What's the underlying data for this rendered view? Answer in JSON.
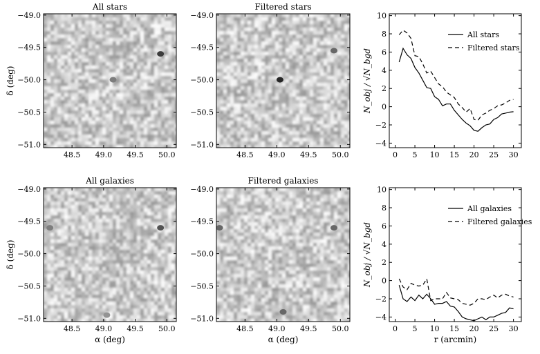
{
  "chart_data": [
    {
      "type": "heatmap",
      "title": "All stars",
      "xlabel": "",
      "ylabel": "δ (deg)",
      "x_ticks": [
        "48.5",
        "49.0",
        "49.5",
        "50.0"
      ],
      "y_ticks": [
        "−49.0",
        "−49.5",
        "−50.0",
        "−50.5",
        "−51.0"
      ],
      "xlim": [
        48.05,
        50.15
      ],
      "ylim": [
        -51.05,
        -48.98
      ],
      "colormap": "grayscale",
      "hotspots": [
        {
          "x": 49.9,
          "y": -49.6,
          "strength": 0.9
        },
        {
          "x": 49.15,
          "y": -50.0,
          "strength": 0.6
        }
      ]
    },
    {
      "type": "heatmap",
      "title": "Filtered stars",
      "xlabel": "",
      "ylabel": "",
      "x_ticks": [
        "48.5",
        "49.0",
        "49.5",
        "50.0"
      ],
      "y_ticks": [
        "−49.0",
        "−49.5",
        "−50.0",
        "−50.5",
        "−51.0"
      ],
      "xlim": [
        48.05,
        50.15
      ],
      "ylim": [
        -51.05,
        -48.98
      ],
      "colormap": "grayscale",
      "hotspots": [
        {
          "x": 49.05,
          "y": -50.0,
          "strength": 1.0
        },
        {
          "x": 49.9,
          "y": -49.55,
          "strength": 0.7
        }
      ]
    },
    {
      "type": "line",
      "xlabel": "",
      "ylabel": "N_obj / √N_bgd",
      "xlim": [
        -1.5,
        32
      ],
      "ylim": [
        -4.5,
        10.2
      ],
      "x_ticks": [
        "0",
        "5",
        "10",
        "15",
        "20",
        "25",
        "30"
      ],
      "y_ticks": [
        "−4",
        "−2",
        "0",
        "2",
        "4",
        "6",
        "8",
        "10"
      ],
      "legend": "top-right",
      "series": [
        {
          "name": "All stars",
          "style": "solid",
          "x": [
            1,
            2,
            3,
            4,
            5,
            6,
            7,
            8,
            9,
            10,
            11,
            12,
            13,
            14,
            15,
            16,
            17,
            18,
            19,
            20,
            21,
            22,
            23,
            24,
            25,
            26,
            27,
            28,
            29,
            30
          ],
          "values": [
            4.9,
            6.4,
            5.7,
            5.3,
            4.3,
            3.7,
            2.9,
            2.1,
            2.0,
            1.1,
            0.8,
            0.1,
            0.3,
            0.3,
            -0.4,
            -0.9,
            -1.4,
            -1.8,
            -2.1,
            -2.6,
            -2.7,
            -2.3,
            -2.0,
            -1.9,
            -1.4,
            -1.2,
            -0.8,
            -0.7,
            -0.6,
            -0.55
          ]
        },
        {
          "name": "Filtered stars",
          "style": "dashed",
          "x": [
            1,
            2,
            3,
            4,
            5,
            6,
            7,
            8,
            9,
            10,
            11,
            12,
            13,
            14,
            15,
            16,
            17,
            18,
            19,
            20,
            21,
            22,
            23,
            24,
            25,
            26,
            27,
            28,
            29,
            30
          ],
          "values": [
            7.9,
            8.4,
            8.1,
            7.5,
            5.6,
            5.5,
            4.7,
            3.7,
            3.9,
            3.2,
            2.5,
            2.2,
            1.6,
            1.3,
            1.0,
            0.3,
            -0.1,
            -0.6,
            -0.2,
            -1.4,
            -1.5,
            -0.9,
            -0.7,
            -0.4,
            -0.2,
            0.1,
            0.2,
            0.4,
            0.7,
            0.8
          ]
        }
      ]
    },
    {
      "type": "heatmap",
      "title": "All galaxies",
      "xlabel": "α (deg)",
      "ylabel": "δ (deg)",
      "x_ticks": [
        "48.5",
        "49.0",
        "49.5",
        "50.0"
      ],
      "y_ticks": [
        "−49.0",
        "−49.5",
        "−50.0",
        "−50.5",
        "−51.0"
      ],
      "xlim": [
        48.05,
        50.15
      ],
      "ylim": [
        -51.05,
        -48.98
      ],
      "colormap": "grayscale",
      "hotspots": [
        {
          "x": 49.9,
          "y": -49.6,
          "strength": 0.8
        },
        {
          "x": 48.15,
          "y": -49.6,
          "strength": 0.6
        },
        {
          "x": 49.05,
          "y": -50.95,
          "strength": 0.5
        }
      ]
    },
    {
      "type": "heatmap",
      "title": "Filtered galaxies",
      "xlabel": "α (deg)",
      "ylabel": "",
      "x_ticks": [
        "48.5",
        "49.0",
        "49.5",
        "50.0"
      ],
      "y_ticks": [
        "−49.0",
        "−49.5",
        "−50.0",
        "−50.5",
        "−51.0"
      ],
      "xlim": [
        48.05,
        50.15
      ],
      "ylim": [
        -51.05,
        -48.98
      ],
      "colormap": "grayscale",
      "hotspots": [
        {
          "x": 49.9,
          "y": -49.6,
          "strength": 0.7
        },
        {
          "x": 48.1,
          "y": -49.6,
          "strength": 0.7
        },
        {
          "x": 49.1,
          "y": -50.9,
          "strength": 0.7
        }
      ]
    },
    {
      "type": "line",
      "xlabel": "r (arcmin)",
      "ylabel": "N_obj / √N_bgd",
      "xlim": [
        -1.5,
        32
      ],
      "ylim": [
        -4.5,
        10.2
      ],
      "x_ticks": [
        "0",
        "5",
        "10",
        "15",
        "20",
        "25",
        "30"
      ],
      "y_ticks": [
        "−4",
        "−2",
        "0",
        "2",
        "4",
        "6",
        "8",
        "10"
      ],
      "legend": "top-right",
      "series": [
        {
          "name": "All galaxies",
          "style": "solid",
          "x": [
            1,
            2,
            3,
            4,
            5,
            6,
            7,
            8,
            9,
            10,
            11,
            12,
            13,
            14,
            15,
            16,
            17,
            18,
            19,
            20,
            21,
            22,
            23,
            24,
            25,
            26,
            27,
            28,
            29,
            30
          ],
          "values": [
            -0.5,
            -2.0,
            -2.3,
            -1.8,
            -2.2,
            -1.6,
            -2.0,
            -1.5,
            -2.0,
            -2.6,
            -2.5,
            -2.5,
            -2.3,
            -2.8,
            -2.9,
            -3.4,
            -4.0,
            -4.2,
            -4.3,
            -4.4,
            -4.2,
            -4.0,
            -4.3,
            -4.0,
            -4.0,
            -3.8,
            -3.6,
            -3.5,
            -3.0,
            -3.1
          ]
        },
        {
          "name": "Filtered galaxies",
          "style": "dashed",
          "x": [
            1,
            2,
            3,
            4,
            5,
            6,
            7,
            8,
            9,
            10,
            11,
            12,
            13,
            14,
            15,
            16,
            17,
            18,
            19,
            20,
            21,
            22,
            23,
            24,
            25,
            26,
            27,
            28,
            29,
            30
          ],
          "values": [
            0.2,
            -0.7,
            -1.0,
            -0.3,
            -0.5,
            -0.6,
            -0.5,
            0.2,
            -2.2,
            -2.0,
            -2.0,
            -2.0,
            -1.3,
            -1.9,
            -2.0,
            -2.1,
            -2.5,
            -2.6,
            -2.7,
            -2.5,
            -2.0,
            -2.0,
            -2.1,
            -1.8,
            -1.6,
            -1.9,
            -1.6,
            -1.5,
            -1.7,
            -1.8
          ]
        }
      ]
    }
  ]
}
